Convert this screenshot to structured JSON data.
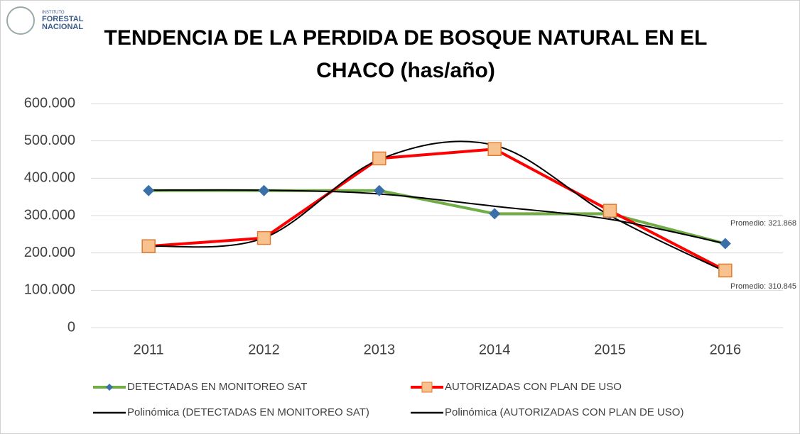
{
  "logo": {
    "small": "INSTITUTO",
    "name": [
      "FORESTAL",
      "NACIONAL"
    ]
  },
  "chart_data": {
    "type": "line",
    "title": "TENDENCIA DE LA PERDIDA DE BOSQUE NATURAL EN EL CHACO (has/año)",
    "categories": [
      "2011",
      "2012",
      "2013",
      "2014",
      "2015",
      "2016"
    ],
    "series": [
      {
        "name": "DETECTADAS EN MONITOREO SAT",
        "color": "#70ad47",
        "marker": "diamond",
        "marker_color": "#3b6fa8",
        "values": [
          367000,
          367000,
          367000,
          305000,
          305000,
          225000
        ]
      },
      {
        "name": "AUTORIZADAS CON PLAN DE USO",
        "color": "#ff0000",
        "marker": "square",
        "marker_color": "#f7c28e",
        "values": [
          218000,
          240000,
          453000,
          478000,
          313000,
          153000
        ]
      },
      {
        "name": "Polinómica (DETECTADAS EN MONITOREO SAT)",
        "color": "#000000",
        "smooth": true,
        "values": [
          368000,
          368000,
          358000,
          325000,
          290000,
          225000
        ]
      },
      {
        "name": "Polinómica (AUTORIZADAS CON PLAN DE USO)",
        "color": "#000000",
        "smooth": true,
        "values": [
          218000,
          240000,
          450000,
          488000,
          300000,
          150000
        ]
      }
    ],
    "annotations": [
      "Promedio: 321.868",
      "Promedio: 310.845"
    ],
    "ylim": [
      0,
      600000
    ],
    "yticks": [
      0,
      {
        "value": 100000,
        "label": "100.000"
      },
      {
        "value": 200000,
        "label": "200.000"
      },
      {
        "value": 300000,
        "label": "300.000"
      },
      {
        "value": 400000,
        "label": "400.000"
      },
      {
        "value": 500000,
        "label": "500.000"
      },
      {
        "value": 600000,
        "label": "600.000"
      }
    ],
    "grid": true
  }
}
